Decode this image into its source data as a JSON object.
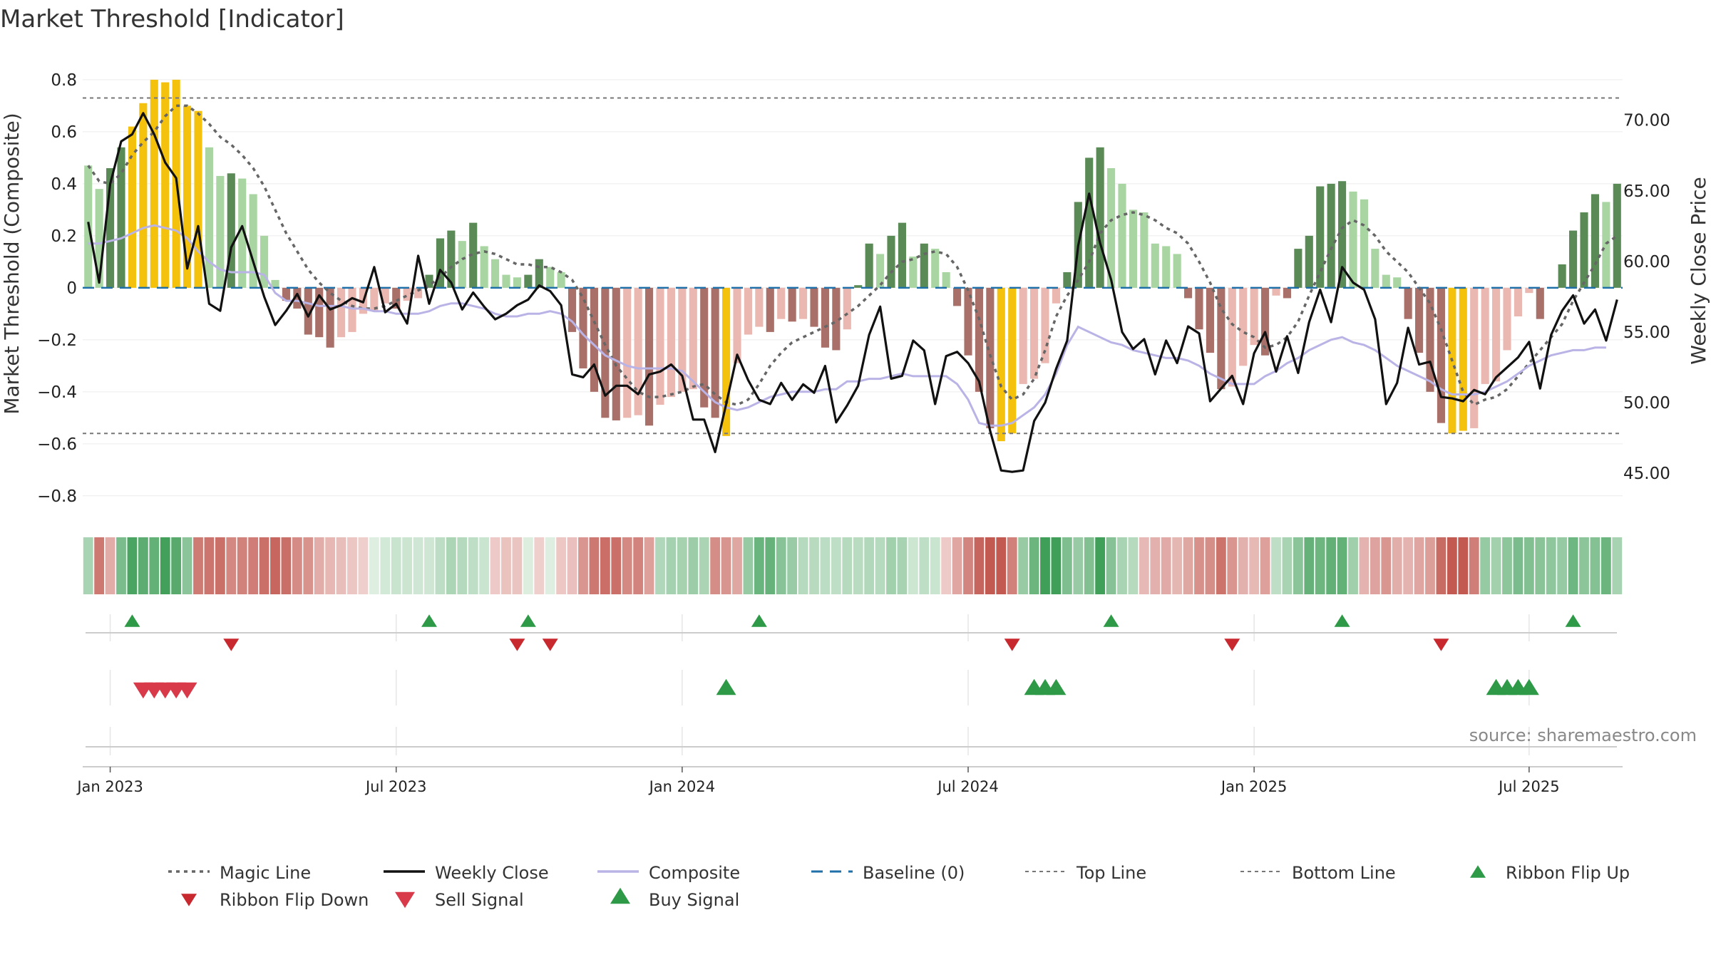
{
  "title": "Market Threshold [Indicator]",
  "source": "source: sharemaestro.com",
  "colors": {
    "strong_up": "#5a8a55",
    "weak_up": "#a8d5a2",
    "strong_down": "#a87068",
    "weak_down": "#eab7b1",
    "extreme": "#f4c20d",
    "price": "#111111",
    "composite": "#b9b3e6",
    "magic": "#666666",
    "baseline": "#1f6fa8",
    "ribbon_up": "#2e9a48",
    "ribbon_down": "#c8292f",
    "buy": "#2e9a48",
    "sell": "#d93a4a"
  },
  "chart_data": {
    "type": "bar+line",
    "title": "Market Threshold [Indicator]",
    "ylabel_left": "Market Threshold (Composite)",
    "ylabel_right": "Weekly Close Price",
    "ylim_left": [
      -0.88,
      0.86
    ],
    "ylim_right": [
      41.93,
      73.97
    ],
    "yticks_left": [
      0.8,
      0.6,
      0.4,
      0.2,
      0,
      -0.2,
      -0.4,
      -0.6,
      -0.8
    ],
    "ytick_labels_left": [
      "0.8",
      "0.6",
      "0.4",
      "0.2",
      "0",
      "−0.2",
      "−0.4",
      "−0.6",
      "−0.8"
    ],
    "yticks_right": [
      70,
      65,
      60,
      55,
      50,
      45
    ],
    "ytick_labels_right": [
      "70.00",
      "65.00",
      "60.00",
      "55.00",
      "50.00",
      "45.00"
    ],
    "top_line": 0.73,
    "bottom_line": -0.56,
    "x_range_weeks": [
      0,
      143
    ],
    "xticks": [
      {
        "label": "Jan 2023",
        "week": 2
      },
      {
        "label": "Jul 2023",
        "week": 28
      },
      {
        "label": "Jan 2024",
        "week": 54
      },
      {
        "label": "Jul 2024",
        "week": 80
      },
      {
        "label": "Jan 2025",
        "week": 106
      },
      {
        "label": "Jul 2025",
        "week": 131
      }
    ],
    "threshold_bars": [
      0.47,
      0.38,
      0.46,
      0.54,
      0.62,
      0.71,
      0.8,
      0.79,
      0.8,
      0.7,
      0.68,
      0.54,
      0.43,
      0.44,
      0.42,
      0.36,
      0.2,
      0.03,
      -0.05,
      -0.08,
      -0.18,
      -0.19,
      -0.23,
      -0.19,
      -0.17,
      -0.1,
      -0.09,
      -0.06,
      -0.08,
      -0.05,
      -0.04,
      0.05,
      0.19,
      0.22,
      0.18,
      0.25,
      0.16,
      0.11,
      0.05,
      0.04,
      0.05,
      0.11,
      0.08,
      0.06,
      -0.17,
      -0.31,
      -0.4,
      -0.5,
      -0.51,
      -0.5,
      -0.49,
      -0.53,
      -0.45,
      -0.42,
      -0.4,
      -0.39,
      -0.46,
      -0.5,
      -0.57,
      -0.29,
      -0.18,
      -0.15,
      -0.17,
      -0.12,
      -0.13,
      -0.12,
      -0.15,
      -0.23,
      -0.24,
      -0.16,
      0.01,
      0.17,
      0.13,
      0.2,
      0.25,
      0.12,
      0.17,
      0.15,
      0.06,
      -0.07,
      -0.26,
      -0.4,
      -0.54,
      -0.59,
      -0.56,
      -0.37,
      -0.35,
      -0.29,
      -0.06,
      0.06,
      0.33,
      0.5,
      0.54,
      0.46,
      0.4,
      0.3,
      0.29,
      0.17,
      0.16,
      0.13,
      -0.04,
      -0.16,
      -0.25,
      -0.39,
      -0.38,
      -0.3,
      -0.22,
      -0.26,
      -0.03,
      -0.04,
      0.15,
      0.2,
      0.39,
      0.4,
      0.41,
      0.37,
      0.34,
      0.15,
      0.05,
      0.04,
      -0.12,
      -0.25,
      -0.4,
      -0.52,
      -0.56,
      -0.55,
      -0.54,
      -0.37,
      -0.36,
      -0.24,
      -0.11,
      -0.02,
      -0.12,
      0,
      0.09,
      0.22,
      0.29,
      0.36,
      0.33,
      0.4
    ],
    "weekly_close": [
      62.8,
      58.5,
      65.5,
      68.5,
      69.0,
      70.5,
      69.0,
      67.0,
      65.9,
      59.5,
      62.5,
      57.0,
      56.5,
      61.0,
      62.5,
      60.0,
      57.5,
      55.5,
      56.5,
      57.7,
      56.1,
      57.6,
      56.6,
      56.9,
      57.4,
      57.1,
      59.6,
      56.4,
      57.0,
      55.6,
      60.4,
      57.0,
      59.4,
      58.5,
      56.6,
      57.8,
      56.8,
      55.9,
      56.3,
      56.9,
      57.3,
      58.3,
      57.9,
      56.9,
      52.0,
      51.8,
      52.7,
      50.5,
      51.2,
      51.2,
      50.6,
      52.0,
      52.2,
      52.7,
      51.9,
      48.8,
      48.8,
      46.5,
      49.9,
      53.4,
      51.6,
      50.2,
      49.9,
      51.4,
      50.2,
      51.3,
      50.7,
      52.6,
      48.6,
      49.8,
      51.2,
      54.8,
      56.8,
      51.7,
      51.9,
      54.4,
      53.7,
      49.9,
      53.3,
      53.6,
      52.8,
      51.5,
      48.0,
      45.2,
      45.1,
      45.2,
      48.7,
      50.0,
      52.4,
      54.4,
      61.1,
      64.8,
      61.3,
      58.7,
      55.0,
      53.8,
      54.5,
      52.0,
      54.4,
      52.8,
      55.4,
      54.9,
      50.1,
      51.0,
      51.9,
      49.9,
      53.5,
      55.0,
      52.2,
      54.7,
      52.1,
      55.7,
      58.0,
      55.7,
      59.6,
      58.5,
      58.0,
      55.9,
      49.9,
      51.4,
      55.3,
      52.7,
      52.9,
      50.4,
      50.3,
      50.1,
      50.9,
      50.6,
      51.8,
      52.5,
      53.2,
      54.3,
      51.0,
      54.8,
      56.5,
      57.6,
      55.6,
      56.6,
      54.4,
      57.3
    ],
    "composite": [
      0.17,
      0.17,
      0.18,
      0.19,
      0.21,
      0.23,
      0.24,
      0.23,
      0.22,
      0.19,
      0.14,
      0.1,
      0.07,
      0.06,
      0.06,
      0.06,
      0.05,
      -0.02,
      -0.05,
      -0.05,
      -0.06,
      -0.07,
      -0.07,
      -0.07,
      -0.08,
      -0.08,
      -0.09,
      -0.09,
      -0.1,
      -0.1,
      -0.1,
      -0.09,
      -0.07,
      -0.06,
      -0.06,
      -0.07,
      -0.08,
      -0.1,
      -0.11,
      -0.11,
      -0.1,
      -0.1,
      -0.09,
      -0.1,
      -0.13,
      -0.18,
      -0.22,
      -0.26,
      -0.28,
      -0.3,
      -0.31,
      -0.31,
      -0.31,
      -0.31,
      -0.32,
      -0.36,
      -0.4,
      -0.44,
      -0.46,
      -0.47,
      -0.46,
      -0.44,
      -0.42,
      -0.41,
      -0.4,
      -0.4,
      -0.4,
      -0.39,
      -0.39,
      -0.36,
      -0.36,
      -0.35,
      -0.35,
      -0.34,
      -0.33,
      -0.34,
      -0.34,
      -0.34,
      -0.34,
      -0.37,
      -0.43,
      -0.52,
      -0.53,
      -0.53,
      -0.52,
      -0.49,
      -0.46,
      -0.41,
      -0.33,
      -0.22,
      -0.15,
      -0.17,
      -0.19,
      -0.21,
      -0.22,
      -0.24,
      -0.25,
      -0.26,
      -0.27,
      -0.27,
      -0.28,
      -0.3,
      -0.33,
      -0.35,
      -0.37,
      -0.37,
      -0.37,
      -0.34,
      -0.32,
      -0.29,
      -0.27,
      -0.24,
      -0.22,
      -0.2,
      -0.19,
      -0.21,
      -0.22,
      -0.24,
      -0.27,
      -0.3,
      -0.32,
      -0.34,
      -0.36,
      -0.39,
      -0.41,
      -0.41,
      -0.41,
      -0.4,
      -0.38,
      -0.36,
      -0.33,
      -0.3,
      -0.28,
      -0.26,
      -0.25,
      -0.24,
      -0.24,
      -0.23,
      -0.23
    ],
    "magic_line": [
      0.47,
      0.41,
      0.4,
      0.44,
      0.51,
      0.56,
      0.6,
      0.66,
      0.7,
      0.7,
      0.67,
      0.63,
      0.58,
      0.55,
      0.51,
      0.46,
      0.39,
      0.3,
      0.21,
      0.14,
      0.07,
      0.02,
      -0.02,
      -0.05,
      -0.07,
      -0.08,
      -0.08,
      -0.07,
      -0.05,
      -0.03,
      -0.01,
      0.01,
      0.04,
      0.08,
      0.11,
      0.13,
      0.14,
      0.13,
      0.11,
      0.09,
      0.09,
      0.08,
      0.08,
      0.06,
      0.03,
      -0.04,
      -0.13,
      -0.22,
      -0.3,
      -0.35,
      -0.4,
      -0.42,
      -0.42,
      -0.41,
      -0.4,
      -0.38,
      -0.37,
      -0.41,
      -0.44,
      -0.45,
      -0.43,
      -0.37,
      -0.3,
      -0.25,
      -0.21,
      -0.19,
      -0.17,
      -0.15,
      -0.13,
      -0.1,
      -0.07,
      -0.03,
      0.01,
      0.06,
      0.1,
      0.11,
      0.13,
      0.14,
      0.13,
      0.08,
      -0.01,
      -0.12,
      -0.26,
      -0.38,
      -0.43,
      -0.41,
      -0.35,
      -0.24,
      -0.11,
      -0.03,
      0.03,
      0.1,
      0.21,
      0.26,
      0.28,
      0.29,
      0.28,
      0.26,
      0.23,
      0.21,
      0.17,
      0.1,
      0.02,
      -0.08,
      -0.14,
      -0.17,
      -0.19,
      -0.23,
      -0.22,
      -0.19,
      -0.13,
      -0.03,
      0.06,
      0.15,
      0.23,
      0.26,
      0.24,
      0.2,
      0.14,
      0.1,
      0.06,
      0.0,
      -0.06,
      -0.16,
      -0.28,
      -0.4,
      -0.45,
      -0.43,
      -0.42,
      -0.39,
      -0.34,
      -0.29,
      -0.24,
      -0.19,
      -0.14,
      -0.05,
      0.02,
      0.09,
      0.17,
      0.2
    ],
    "ribbon_flip_up_weeks": [
      4,
      31,
      40,
      61,
      93,
      114,
      135
    ],
    "ribbon_flip_down_weeks": [
      13,
      39,
      42,
      84,
      104,
      123
    ],
    "buy_signal_weeks": [
      58,
      86,
      87,
      88,
      128,
      129,
      130,
      131
    ],
    "sell_signal_weeks": [
      5,
      6,
      7,
      8,
      9
    ],
    "legend": [
      {
        "key": "magic",
        "label": "Magic Line"
      },
      {
        "key": "close",
        "label": "Weekly Close"
      },
      {
        "key": "composite",
        "label": "Composite"
      },
      {
        "key": "baseline",
        "label": "Baseline (0)"
      },
      {
        "key": "top",
        "label": "Top Line"
      },
      {
        "key": "bottom",
        "label": "Bottom Line"
      },
      {
        "key": "flip_up",
        "label": "Ribbon Flip Up"
      },
      {
        "key": "flip_down",
        "label": "Ribbon Flip Down"
      },
      {
        "key": "sell",
        "label": "Sell Signal"
      },
      {
        "key": "buy",
        "label": "Buy Signal"
      }
    ]
  }
}
